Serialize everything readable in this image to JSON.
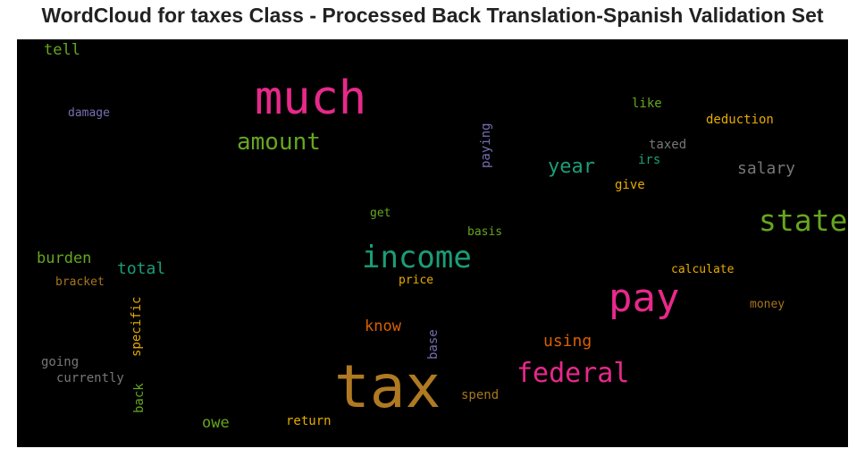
{
  "title": "WordCloud for taxes Class - Processed Back Translation-Spanish Validation Set",
  "background": "#000000",
  "words": [
    {
      "id": "tax",
      "text": "tax",
      "color": "#b07a22"
    },
    {
      "id": "much",
      "text": "much",
      "color": "#e7298a"
    },
    {
      "id": "pay",
      "text": "pay",
      "color": "#e7298a"
    },
    {
      "id": "income",
      "text": "income",
      "color": "#1b9e77"
    },
    {
      "id": "state",
      "text": "state",
      "color": "#66a61e"
    },
    {
      "id": "federal",
      "text": "federal",
      "color": "#e7298a"
    },
    {
      "id": "amount",
      "text": "amount",
      "color": "#66a61e"
    },
    {
      "id": "year",
      "text": "year",
      "color": "#1b9e77"
    },
    {
      "id": "salary",
      "text": "salary",
      "color": "#777777"
    },
    {
      "id": "burden",
      "text": "burden",
      "color": "#66a61e"
    },
    {
      "id": "total",
      "text": "total",
      "color": "#1b9e77"
    },
    {
      "id": "know",
      "text": "know",
      "color": "#d95f02"
    },
    {
      "id": "using",
      "text": "using",
      "color": "#d95f02"
    },
    {
      "id": "owe",
      "text": "owe",
      "color": "#66a61e"
    },
    {
      "id": "tell",
      "text": "tell",
      "color": "#66a61e"
    },
    {
      "id": "damage",
      "text": "damage",
      "color": "#7570b3"
    },
    {
      "id": "paying",
      "text": "paying",
      "color": "#7570b3"
    },
    {
      "id": "like",
      "text": "like",
      "color": "#66a61e"
    },
    {
      "id": "deduction",
      "text": "deduction",
      "color": "#e6ab02"
    },
    {
      "id": "taxed",
      "text": "taxed",
      "color": "#777777"
    },
    {
      "id": "irs",
      "text": "irs",
      "color": "#1b9e77"
    },
    {
      "id": "give",
      "text": "give",
      "color": "#e6ab02"
    },
    {
      "id": "get",
      "text": "get",
      "color": "#66a61e"
    },
    {
      "id": "basis",
      "text": "basis",
      "color": "#66a61e"
    },
    {
      "id": "calculate",
      "text": "calculate",
      "color": "#e6ab02"
    },
    {
      "id": "bracket",
      "text": "bracket",
      "color": "#a6761d"
    },
    {
      "id": "price",
      "text": "price",
      "color": "#e6ab02"
    },
    {
      "id": "money",
      "text": "money",
      "color": "#a6761d"
    },
    {
      "id": "specific",
      "text": "specific",
      "color": "#e6ab02"
    },
    {
      "id": "going",
      "text": "going",
      "color": "#777777"
    },
    {
      "id": "currently",
      "text": "currently",
      "color": "#777777"
    },
    {
      "id": "base",
      "text": "base",
      "color": "#7570b3"
    },
    {
      "id": "back",
      "text": "back",
      "color": "#66a61e"
    },
    {
      "id": "spend",
      "text": "spend",
      "color": "#a6761d"
    },
    {
      "id": "return",
      "text": "return",
      "color": "#e6ab02"
    }
  ]
}
